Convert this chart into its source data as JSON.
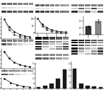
{
  "bg_color": "#ffffff",
  "blot_bg": "#d8d8d8",
  "blot_bg2": "#c0c0c0",
  "plot_bg": "#ffffff",
  "dark_band": "#222222",
  "mid_band": "#666666",
  "light_band": "#aaaaaa",
  "very_light_band": "#cccccc",
  "bar_dark": "#1a1a1a",
  "bar_mid": "#555555",
  "col1_blot_rows": 3,
  "col1_blot_cols": 6,
  "col2_blot_rows": 4,
  "col2_blot_cols": 6,
  "col3_blot_rows": 3,
  "col3_blot_cols": 5
}
